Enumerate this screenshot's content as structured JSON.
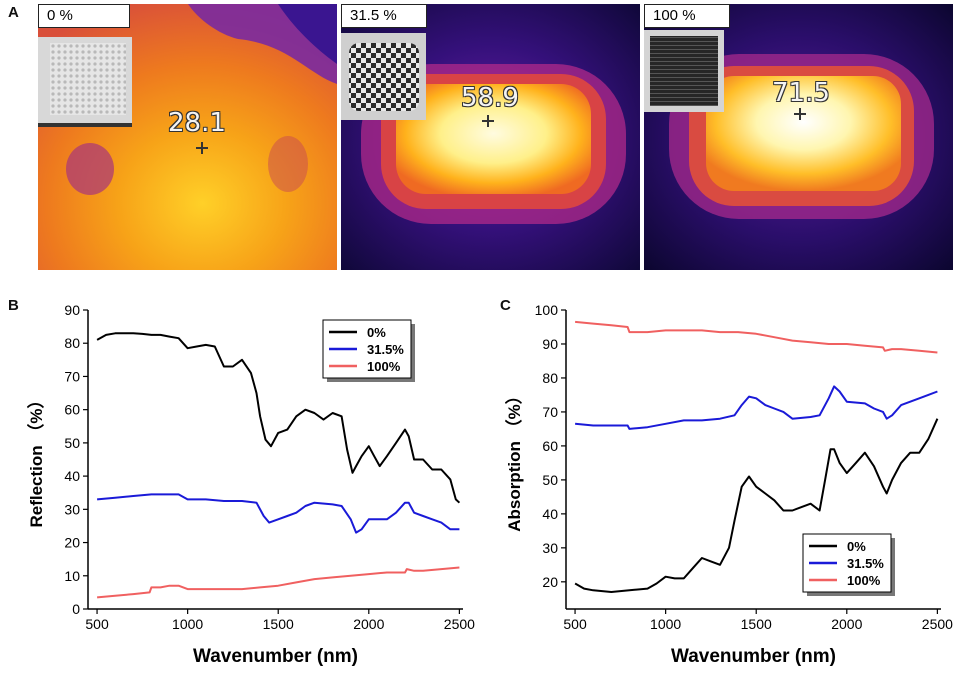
{
  "panels": {
    "a": "A",
    "b": "B",
    "c": "C"
  },
  "thermal_images": [
    {
      "label": "0 %",
      "temperature": "28.1"
    },
    {
      "label": "31.5 %",
      "temperature": "58.9"
    },
    {
      "label": "100 %",
      "temperature": "71.5"
    }
  ],
  "colors": {
    "s0": "#000000",
    "s31": "#1a1ad8",
    "s100": "#f06060"
  },
  "chart_data": [
    {
      "type": "line",
      "xlabel": "Wavenumber (nm)",
      "ylabel": "Reflection （%）",
      "xlim": [
        450,
        2520
      ],
      "ylim": [
        0,
        90
      ],
      "xticks": [
        "500",
        "1000",
        "1500",
        "2000",
        "2500"
      ],
      "yticks": [
        "0",
        "10",
        "20",
        "30",
        "40",
        "50",
        "60",
        "70",
        "80",
        "90"
      ],
      "legend_position": "top-right",
      "series": [
        {
          "name": "0%",
          "color": "#000000",
          "x": [
            500,
            550,
            600,
            650,
            700,
            750,
            800,
            850,
            900,
            950,
            1000,
            1050,
            1100,
            1150,
            1200,
            1250,
            1300,
            1350,
            1380,
            1400,
            1430,
            1460,
            1500,
            1550,
            1600,
            1650,
            1700,
            1750,
            1800,
            1850,
            1880,
            1910,
            1930,
            1960,
            2000,
            2030,
            2060,
            2100,
            2150,
            2200,
            2220,
            2250,
            2300,
            2350,
            2400,
            2450,
            2480,
            2500
          ],
          "y": [
            81,
            82.5,
            83,
            83,
            83,
            82.8,
            82.5,
            82.5,
            82,
            81.5,
            78.5,
            79,
            79.5,
            79,
            73,
            73,
            75,
            71,
            65,
            58,
            51,
            49,
            53,
            54,
            58,
            60,
            59,
            57,
            59,
            58,
            48,
            41,
            43,
            46,
            49,
            46,
            43,
            46,
            50,
            54,
            52,
            45,
            45,
            42,
            42,
            39,
            33,
            32
          ]
        },
        {
          "name": "31.5%",
          "color": "#1a1ad8",
          "x": [
            500,
            600,
            700,
            800,
            900,
            950,
            1000,
            1100,
            1200,
            1300,
            1380,
            1420,
            1450,
            1500,
            1550,
            1600,
            1650,
            1700,
            1800,
            1850,
            1900,
            1930,
            1960,
            2000,
            2100,
            2150,
            2200,
            2220,
            2250,
            2300,
            2350,
            2400,
            2450,
            2500
          ],
          "y": [
            33,
            33.5,
            34,
            34.5,
            34.5,
            34.5,
            33,
            33,
            32.5,
            32.5,
            32,
            28,
            26,
            27,
            28,
            29,
            31,
            32,
            31.5,
            31,
            27,
            23,
            24,
            27,
            27,
            29,
            32,
            32,
            29,
            28,
            27,
            26,
            24,
            24
          ]
        },
        {
          "name": "100%",
          "color": "#f06060",
          "x": [
            500,
            600,
            700,
            790,
            800,
            850,
            900,
            950,
            1000,
            1100,
            1200,
            1300,
            1400,
            1500,
            1600,
            1700,
            1800,
            1900,
            2000,
            2100,
            2200,
            2210,
            2250,
            2300,
            2400,
            2500
          ],
          "y": [
            3.5,
            4,
            4.5,
            5,
            6.5,
            6.5,
            7,
            7,
            6,
            6,
            6,
            6,
            6.5,
            7,
            8,
            9,
            9.5,
            10,
            10.5,
            11,
            11,
            12,
            11.5,
            11.5,
            12,
            12.5
          ]
        }
      ]
    },
    {
      "type": "line",
      "xlabel": "Wavenumber (nm)",
      "ylabel": "Absorption （%）",
      "xlim": [
        450,
        2520
      ],
      "ylim": [
        12,
        100
      ],
      "xticks": [
        "500",
        "1000",
        "1500",
        "2000",
        "2500"
      ],
      "yticks": [
        "20",
        "30",
        "40",
        "50",
        "60",
        "70",
        "80",
        "90",
        "100"
      ],
      "legend_position": "bottom-right",
      "series": [
        {
          "name": "0%",
          "color": "#000000",
          "x": [
            500,
            550,
            600,
            700,
            800,
            900,
            950,
            1000,
            1050,
            1100,
            1150,
            1200,
            1250,
            1300,
            1350,
            1380,
            1420,
            1460,
            1500,
            1550,
            1600,
            1650,
            1700,
            1750,
            1800,
            1850,
            1880,
            1910,
            1930,
            1960,
            2000,
            2050,
            2100,
            2150,
            2200,
            2220,
            2250,
            2300,
            2350,
            2400,
            2450,
            2500
          ],
          "y": [
            19.5,
            18,
            17.5,
            17,
            17.5,
            18,
            19.5,
            21.5,
            21,
            21,
            24,
            27,
            26,
            25,
            30,
            38,
            48,
            51,
            48,
            46,
            44,
            41,
            41,
            42,
            43,
            41,
            50,
            59,
            59,
            55,
            52,
            55,
            58,
            54,
            48,
            46,
            50,
            55,
            58,
            58,
            62,
            68
          ]
        },
        {
          "name": "31.5%",
          "color": "#1a1ad8",
          "x": [
            500,
            600,
            700,
            790,
            800,
            900,
            1000,
            1100,
            1200,
            1300,
            1380,
            1420,
            1460,
            1500,
            1550,
            1600,
            1650,
            1700,
            1800,
            1850,
            1900,
            1930,
            1960,
            2000,
            2100,
            2150,
            2200,
            2220,
            2250,
            2300,
            2350,
            2400,
            2450,
            2500
          ],
          "y": [
            66.5,
            66,
            66,
            66,
            65,
            65.5,
            66.5,
            67.5,
            67.5,
            68,
            69,
            72,
            74.5,
            74,
            72,
            71,
            70,
            68,
            68.5,
            69,
            74,
            77.5,
            76,
            73,
            72.5,
            71,
            70,
            68,
            69,
            72,
            73,
            74,
            75,
            76
          ]
        },
        {
          "name": "100%",
          "color": "#f06060",
          "x": [
            500,
            600,
            700,
            790,
            800,
            900,
            1000,
            1100,
            1200,
            1300,
            1400,
            1500,
            1600,
            1700,
            1800,
            1900,
            2000,
            2100,
            2200,
            2210,
            2250,
            2300,
            2400,
            2500
          ],
          "y": [
            96.5,
            96,
            95.5,
            95,
            93.5,
            93.5,
            94,
            94,
            94,
            93.5,
            93.5,
            93,
            92,
            91,
            90.5,
            90,
            90,
            89.5,
            89,
            88,
            88.5,
            88.5,
            88,
            87.5
          ]
        }
      ]
    }
  ]
}
